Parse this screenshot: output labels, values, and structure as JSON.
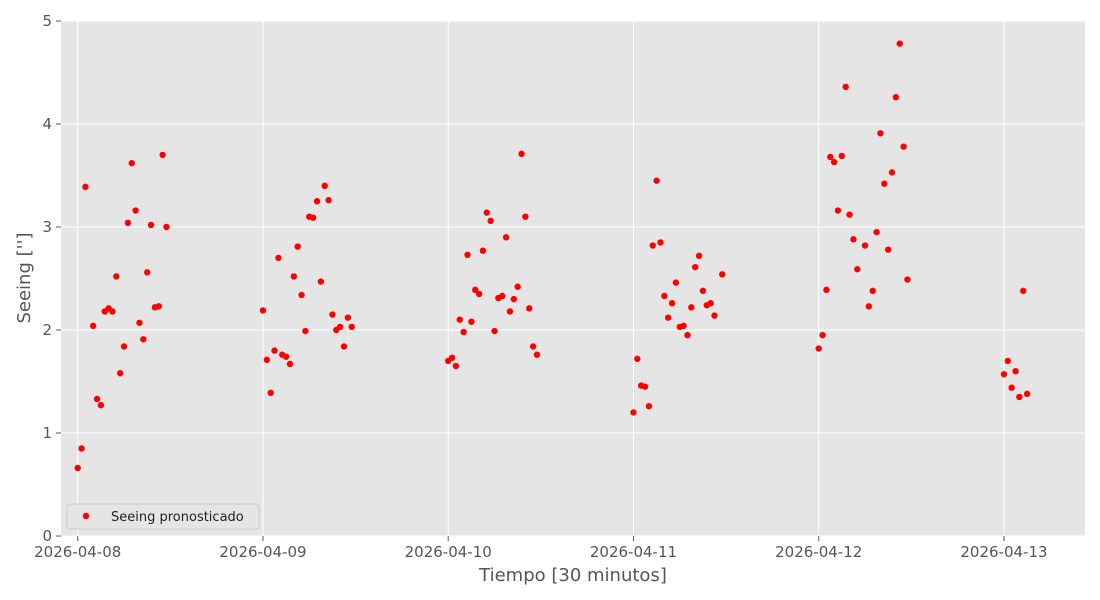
{
  "chart_data": {
    "type": "scatter",
    "xlabel": "Tiempo [30 minutos]",
    "ylabel": "Seeing ['']",
    "ylim": [
      0,
      5
    ],
    "xlim": [
      "2026-04-07T21:50",
      "2026-04-13T10:30"
    ],
    "x_ticks": [
      "2026-04-08",
      "2026-04-09",
      "2026-04-10",
      "2026-04-11",
      "2026-04-12",
      "2026-04-13"
    ],
    "y_ticks": [
      0,
      1,
      2,
      3,
      4,
      5
    ],
    "grid": true,
    "legend_position": "lower-left",
    "marker_color": "#ff0000",
    "background": "#e5e5e5",
    "series": [
      {
        "name": "Seeing pronosticado",
        "points": [
          [
            "2026-04-08T00:00",
            0.66
          ],
          [
            "2026-04-08T00:30",
            0.85
          ],
          [
            "2026-04-08T01:00",
            3.39
          ],
          [
            "2026-04-08T02:00",
            2.04
          ],
          [
            "2026-04-08T02:30",
            1.33
          ],
          [
            "2026-04-08T03:00",
            1.27
          ],
          [
            "2026-04-08T03:30",
            2.18
          ],
          [
            "2026-04-08T04:00",
            2.21
          ],
          [
            "2026-04-08T04:30",
            2.18
          ],
          [
            "2026-04-08T05:00",
            2.52
          ],
          [
            "2026-04-08T05:30",
            1.58
          ],
          [
            "2026-04-08T06:00",
            1.84
          ],
          [
            "2026-04-08T06:30",
            3.04
          ],
          [
            "2026-04-08T07:00",
            3.62
          ],
          [
            "2026-04-08T07:30",
            3.16
          ],
          [
            "2026-04-08T08:00",
            2.07
          ],
          [
            "2026-04-08T08:30",
            1.91
          ],
          [
            "2026-04-08T09:00",
            2.56
          ],
          [
            "2026-04-08T09:30",
            3.02
          ],
          [
            "2026-04-08T10:00",
            2.22
          ],
          [
            "2026-04-08T10:30",
            2.23
          ],
          [
            "2026-04-08T11:00",
            3.7
          ],
          [
            "2026-04-08T11:30",
            3.0
          ],
          [
            "2026-04-09T00:00",
            2.19
          ],
          [
            "2026-04-09T00:30",
            1.71
          ],
          [
            "2026-04-09T01:00",
            1.39
          ],
          [
            "2026-04-09T01:30",
            1.8
          ],
          [
            "2026-04-09T02:00",
            2.7
          ],
          [
            "2026-04-09T02:30",
            1.76
          ],
          [
            "2026-04-09T03:00",
            1.74
          ],
          [
            "2026-04-09T03:30",
            1.67
          ],
          [
            "2026-04-09T04:00",
            2.52
          ],
          [
            "2026-04-09T04:30",
            2.81
          ],
          [
            "2026-04-09T05:00",
            2.34
          ],
          [
            "2026-04-09T05:30",
            1.99
          ],
          [
            "2026-04-09T06:00",
            3.1
          ],
          [
            "2026-04-09T06:30",
            3.09
          ],
          [
            "2026-04-09T07:00",
            3.25
          ],
          [
            "2026-04-09T07:30",
            2.47
          ],
          [
            "2026-04-09T08:00",
            3.4
          ],
          [
            "2026-04-09T08:30",
            3.26
          ],
          [
            "2026-04-09T09:00",
            2.15
          ],
          [
            "2026-04-09T09:30",
            2.0
          ],
          [
            "2026-04-09T10:00",
            2.03
          ],
          [
            "2026-04-09T10:30",
            1.84
          ],
          [
            "2026-04-09T11:00",
            2.12
          ],
          [
            "2026-04-09T11:30",
            2.03
          ],
          [
            "2026-04-10T00:00",
            1.7
          ],
          [
            "2026-04-10T00:30",
            1.73
          ],
          [
            "2026-04-10T01:00",
            1.65
          ],
          [
            "2026-04-10T01:30",
            2.1
          ],
          [
            "2026-04-10T02:00",
            1.98
          ],
          [
            "2026-04-10T02:30",
            2.73
          ],
          [
            "2026-04-10T03:00",
            2.08
          ],
          [
            "2026-04-10T03:30",
            2.39
          ],
          [
            "2026-04-10T04:00",
            2.35
          ],
          [
            "2026-04-10T04:30",
            2.77
          ],
          [
            "2026-04-10T05:00",
            3.14
          ],
          [
            "2026-04-10T05:30",
            3.06
          ],
          [
            "2026-04-10T06:00",
            1.99
          ],
          [
            "2026-04-10T06:30",
            2.31
          ],
          [
            "2026-04-10T07:00",
            2.33
          ],
          [
            "2026-04-10T07:30",
            2.9
          ],
          [
            "2026-04-10T08:00",
            2.18
          ],
          [
            "2026-04-10T08:30",
            2.3
          ],
          [
            "2026-04-10T09:00",
            2.42
          ],
          [
            "2026-04-10T09:30",
            3.71
          ],
          [
            "2026-04-10T10:00",
            3.1
          ],
          [
            "2026-04-10T10:30",
            2.21
          ],
          [
            "2026-04-10T11:00",
            1.84
          ],
          [
            "2026-04-10T11:30",
            1.76
          ],
          [
            "2026-04-11T00:00",
            1.2
          ],
          [
            "2026-04-11T00:30",
            1.72
          ],
          [
            "2026-04-11T01:00",
            1.46
          ],
          [
            "2026-04-11T01:30",
            1.45
          ],
          [
            "2026-04-11T02:00",
            1.26
          ],
          [
            "2026-04-11T02:30",
            2.82
          ],
          [
            "2026-04-11T03:00",
            3.45
          ],
          [
            "2026-04-11T03:30",
            2.85
          ],
          [
            "2026-04-11T04:00",
            2.33
          ],
          [
            "2026-04-11T04:30",
            2.12
          ],
          [
            "2026-04-11T05:00",
            2.26
          ],
          [
            "2026-04-11T05:30",
            2.46
          ],
          [
            "2026-04-11T06:00",
            2.03
          ],
          [
            "2026-04-11T06:30",
            2.04
          ],
          [
            "2026-04-11T07:00",
            1.95
          ],
          [
            "2026-04-11T07:30",
            2.22
          ],
          [
            "2026-04-11T08:00",
            2.61
          ],
          [
            "2026-04-11T08:30",
            2.72
          ],
          [
            "2026-04-11T09:00",
            2.38
          ],
          [
            "2026-04-11T09:30",
            2.24
          ],
          [
            "2026-04-11T10:00",
            2.26
          ],
          [
            "2026-04-11T10:30",
            2.14
          ],
          [
            "2026-04-11T11:30",
            2.54
          ],
          [
            "2026-04-12T00:00",
            1.82
          ],
          [
            "2026-04-12T00:30",
            1.95
          ],
          [
            "2026-04-12T01:00",
            2.39
          ],
          [
            "2026-04-12T01:30",
            3.68
          ],
          [
            "2026-04-12T02:00",
            3.63
          ],
          [
            "2026-04-12T02:30",
            3.16
          ],
          [
            "2026-04-12T03:00",
            3.69
          ],
          [
            "2026-04-12T03:30",
            4.36
          ],
          [
            "2026-04-12T04:00",
            3.12
          ],
          [
            "2026-04-12T04:30",
            2.88
          ],
          [
            "2026-04-12T05:00",
            2.59
          ],
          [
            "2026-04-12T06:00",
            2.82
          ],
          [
            "2026-04-12T06:30",
            2.23
          ],
          [
            "2026-04-12T07:00",
            2.38
          ],
          [
            "2026-04-12T07:30",
            2.95
          ],
          [
            "2026-04-12T08:00",
            3.91
          ],
          [
            "2026-04-12T08:30",
            3.42
          ],
          [
            "2026-04-12T09:00",
            2.78
          ],
          [
            "2026-04-12T09:30",
            3.53
          ],
          [
            "2026-04-12T10:00",
            4.26
          ],
          [
            "2026-04-12T10:30",
            4.78
          ],
          [
            "2026-04-12T11:00",
            3.78
          ],
          [
            "2026-04-12T11:30",
            2.49
          ],
          [
            "2026-04-13T00:00",
            1.57
          ],
          [
            "2026-04-13T00:30",
            1.7
          ],
          [
            "2026-04-13T01:00",
            1.44
          ],
          [
            "2026-04-13T01:30",
            1.6
          ],
          [
            "2026-04-13T02:00",
            1.35
          ],
          [
            "2026-04-13T02:30",
            2.38
          ],
          [
            "2026-04-13T03:00",
            1.38
          ]
        ]
      }
    ]
  }
}
